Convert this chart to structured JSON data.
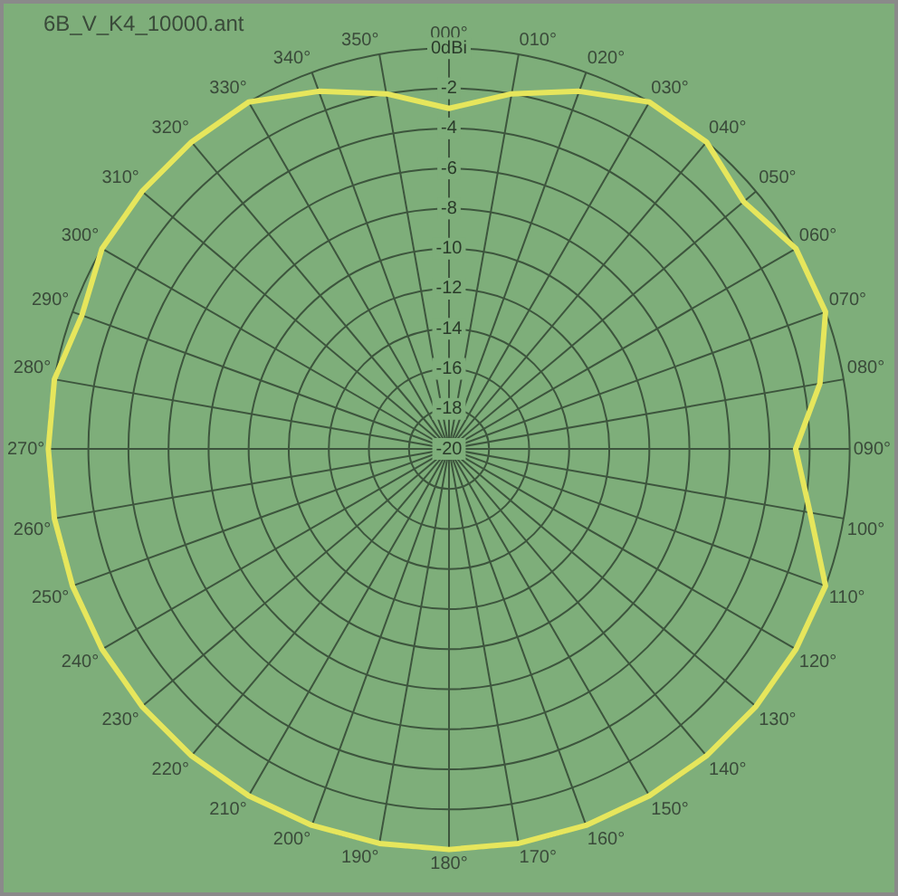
{
  "chart_data": {
    "type": "radar",
    "title": "6B_V_K4_10000.ant",
    "categories": [
      "000°",
      "010°",
      "020°",
      "030°",
      "040°",
      "050°",
      "060°",
      "070°",
      "080°",
      "090°",
      "100°",
      "110°",
      "120°",
      "130°",
      "140°",
      "150°",
      "160°",
      "170°",
      "180°",
      "190°",
      "200°",
      "210°",
      "220°",
      "230°",
      "240°",
      "250°",
      "260°",
      "270°",
      "280°",
      "290°",
      "300°",
      "310°",
      "320°",
      "330°",
      "340°",
      "350°"
    ],
    "series": [
      {
        "color": "#e6e65c",
        "values": [
          -3,
          -2,
          -1,
          0,
          0,
          -0.8,
          0,
          0,
          -1.2,
          -2.7,
          -1.7,
          0,
          0,
          0,
          0,
          0,
          0,
          0,
          0,
          0,
          0,
          0,
          0,
          0,
          0,
          0,
          0,
          0,
          0,
          -0.5,
          0,
          0,
          0,
          0,
          -1,
          -2
        ]
      }
    ],
    "ylim": [
      -20,
      0
    ],
    "yticks": [
      -20,
      -18,
      -16,
      -14,
      -12,
      -10,
      -8,
      -6,
      -4,
      -2,
      {
        "value": 0,
        "label": "0dBi"
      }
    ],
    "grid": true,
    "legend": false,
    "marker": "none",
    "line_style": "solid"
  }
}
